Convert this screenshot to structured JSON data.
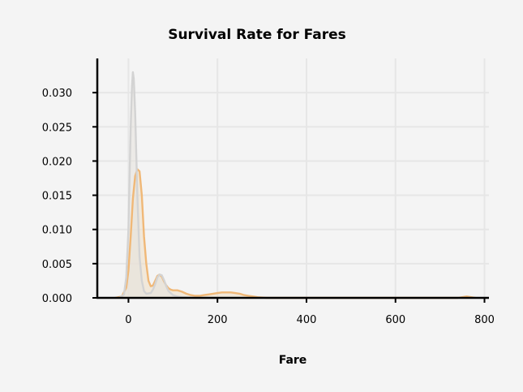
{
  "chart_data": {
    "type": "area",
    "title": "Survival Rate for Fares",
    "xlabel": "Fare",
    "ylabel": "",
    "xlim": [
      -70,
      810
    ],
    "ylim": [
      0,
      0.035
    ],
    "x_ticks": [
      0,
      200,
      400,
      600,
      800
    ],
    "y_ticks": [
      0.0,
      0.005,
      0.01,
      0.015,
      0.02,
      0.025,
      0.03
    ],
    "y_tick_labels": [
      "0.000",
      "0.005",
      "0.010",
      "0.015",
      "0.020",
      "0.025",
      "0.030"
    ],
    "grid": true,
    "legend": "none",
    "colors": {
      "background": "#f4f4f4",
      "grid": "#e6e6e6",
      "axis": "#000000"
    },
    "series": [
      {
        "color": "#f0b877",
        "fill": "#eedfc8",
        "x": [
          -30,
          -15,
          -5,
          0,
          5,
          10,
          15,
          20,
          25,
          30,
          35,
          40,
          45,
          50,
          55,
          60,
          65,
          70,
          75,
          80,
          85,
          90,
          95,
          100,
          110,
          120,
          130,
          140,
          150,
          160,
          170,
          180,
          190,
          200,
          210,
          220,
          230,
          240,
          250,
          260,
          270,
          280,
          290,
          300,
          310,
          320,
          740,
          760,
          780
        ],
        "y": [
          0.0,
          0.0002,
          0.0015,
          0.004,
          0.009,
          0.0145,
          0.0178,
          0.0188,
          0.0185,
          0.015,
          0.009,
          0.005,
          0.0025,
          0.0017,
          0.0018,
          0.0025,
          0.0032,
          0.0034,
          0.0031,
          0.0024,
          0.0018,
          0.0014,
          0.0012,
          0.0011,
          0.0011,
          0.0009,
          0.0006,
          0.0004,
          0.0003,
          0.0003,
          0.0004,
          0.0005,
          0.0006,
          0.0007,
          0.0008,
          0.0008,
          0.0008,
          0.0007,
          0.0006,
          0.0004,
          0.0003,
          0.0002,
          0.0001,
          5e-05,
          0.0,
          0.0,
          0.0,
          0.0002,
          0.0
        ]
      },
      {
        "color": "#d3d3d3",
        "fill": "#e6e2dd",
        "x": [
          -20,
          -10,
          -5,
          0,
          2,
          5,
          8,
          10,
          12,
          15,
          18,
          20,
          25,
          30,
          35,
          40,
          50,
          55,
          60,
          65,
          70,
          75,
          80,
          85,
          90,
          100,
          110,
          120,
          150,
          200,
          250
        ],
        "y": [
          0.0,
          0.0005,
          0.003,
          0.01,
          0.016,
          0.025,
          0.031,
          0.033,
          0.032,
          0.027,
          0.02,
          0.015,
          0.006,
          0.0025,
          0.001,
          0.0006,
          0.0007,
          0.0012,
          0.002,
          0.003,
          0.0034,
          0.0033,
          0.0026,
          0.0017,
          0.001,
          0.0004,
          0.0002,
          0.0001,
          0.0,
          0.0,
          0.0
        ]
      }
    ]
  }
}
